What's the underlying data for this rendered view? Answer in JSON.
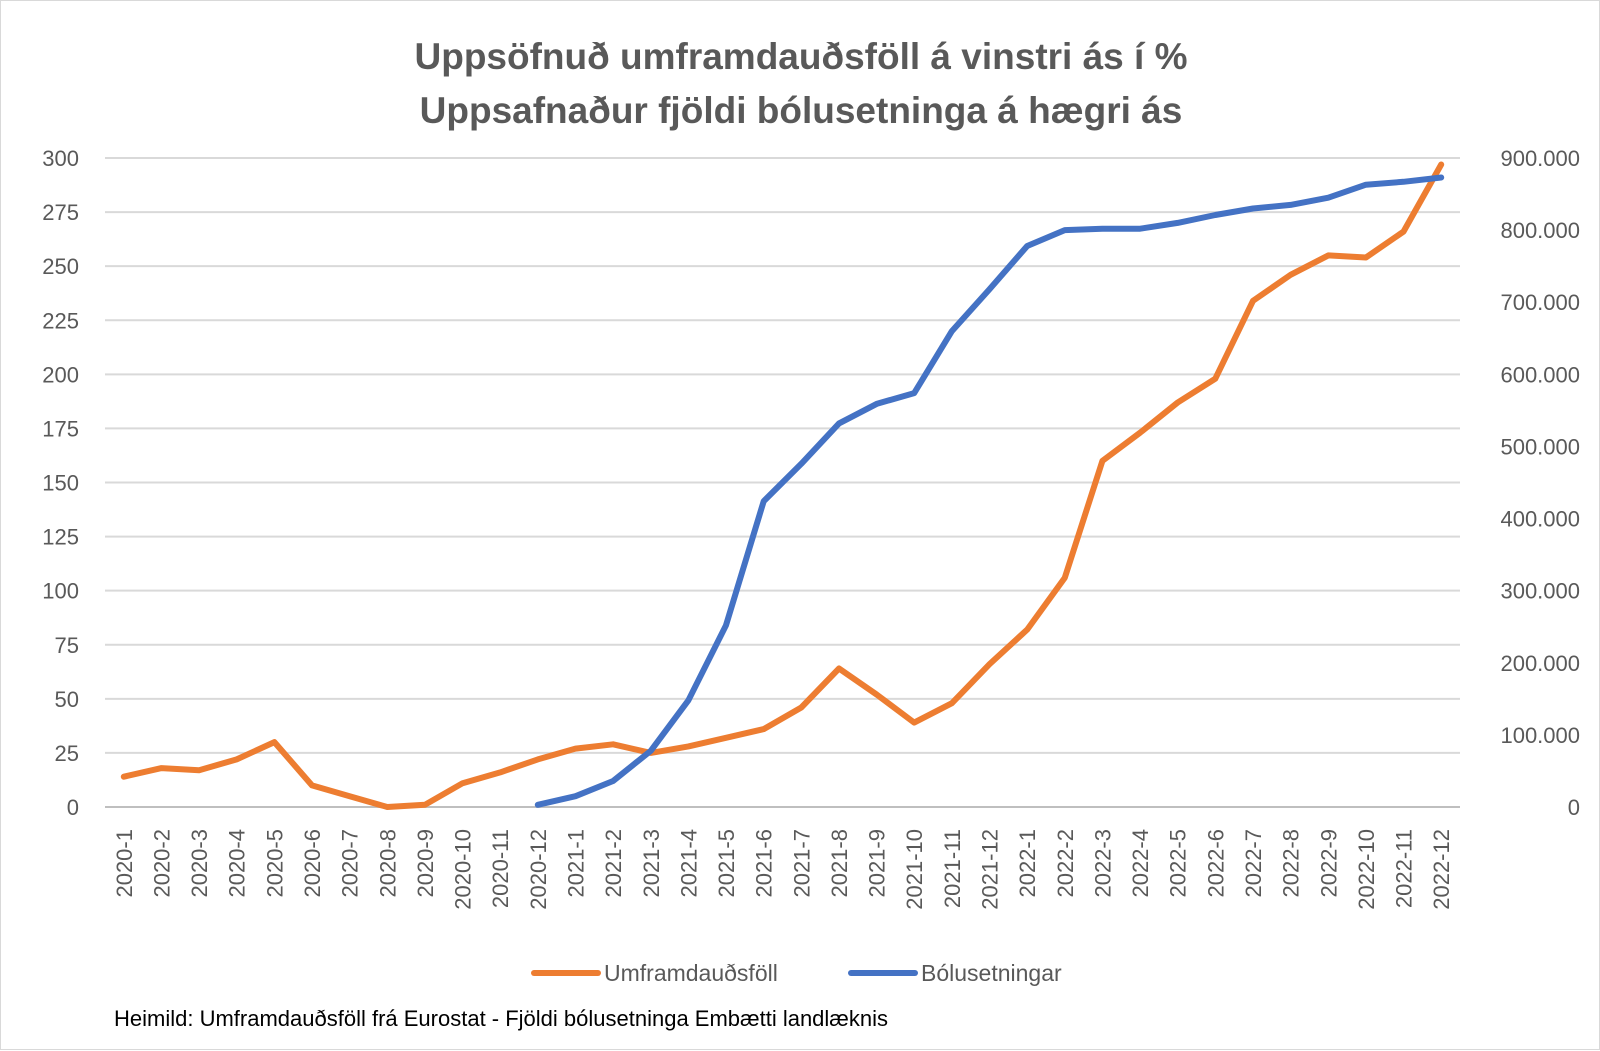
{
  "chart_data": {
    "type": "line",
    "title": [
      "Uppsöfnuð umframdauðsföll á vinstri ás í %",
      "Uppsafnaður fjöldi bólusetninga á hægri ás"
    ],
    "source": "Heimild: Umframdauðsföll frá Eurostat - Fjöldi bólusetninga Embætti landlæknis",
    "categories": [
      "2020-1",
      "2020-2",
      "2020-3",
      "2020-4",
      "2020-5",
      "2020-6",
      "2020-7",
      "2020-8",
      "2020-9",
      "2020-10",
      "2020-11",
      "2020-12",
      "2021-1",
      "2021-2",
      "2021-3",
      "2021-4",
      "2021-5",
      "2021-6",
      "2021-7",
      "2021-8",
      "2021-9",
      "2021-10",
      "2021-11",
      "2021-12",
      "2022-1",
      "2022-2",
      "2022-3",
      "2022-4",
      "2022-5",
      "2022-6",
      "2022-7",
      "2022-8",
      "2022-9",
      "2022-10",
      "2022-11",
      "2022-12"
    ],
    "y_left": {
      "ticks": [
        "0",
        "25",
        "50",
        "75",
        "100",
        "125",
        "150",
        "175",
        "200",
        "225",
        "250",
        "275",
        "300"
      ],
      "range": [
        0,
        300
      ]
    },
    "y_right": {
      "ticks": [
        "0",
        "100.000",
        "200.000",
        "300.000",
        "400.000",
        "500.000",
        "600.000",
        "700.000",
        "800.000",
        "900.000"
      ],
      "range": [
        0,
        900000
      ]
    },
    "grid": true,
    "legend_position": "bottom",
    "series": [
      {
        "name": "Umframdauðsföll",
        "axis": "left",
        "color": "#ED7D31",
        "values": [
          14,
          18,
          17,
          22,
          30,
          10,
          5,
          0,
          1,
          11,
          16,
          22,
          27,
          29,
          25,
          28,
          32,
          36,
          46,
          64,
          52,
          39,
          48,
          66,
          82,
          106,
          160,
          173,
          187,
          198,
          234,
          246,
          255,
          254,
          266,
          297
        ]
      },
      {
        "name": "Bólusetningar",
        "axis": "right",
        "color": "#4472C4",
        "values": [
          null,
          null,
          null,
          null,
          null,
          null,
          null,
          null,
          null,
          null,
          null,
          3000,
          15000,
          36000,
          78000,
          148000,
          252000,
          424000,
          476000,
          532000,
          559000,
          574000,
          660000,
          718000,
          778000,
          800000,
          802000,
          802000,
          810000,
          821000,
          830000,
          835000,
          845000,
          863000,
          867000,
          873000
        ]
      }
    ]
  }
}
